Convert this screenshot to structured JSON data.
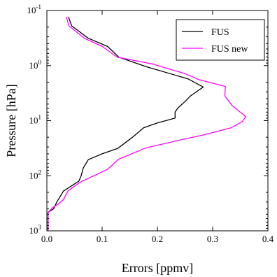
{
  "chart_data": {
    "type": "line",
    "title": "",
    "xlabel": "Errors [ppmv]",
    "ylabel": "Pressure [hPa]",
    "xlim": [
      0.0,
      0.4
    ],
    "ylim": [
      1000,
      0.1
    ],
    "yscale": "log",
    "y_inverted": true,
    "grid": false,
    "legend_position": "top-right",
    "x_ticks": [
      0.0,
      0.1,
      0.2,
      0.3,
      0.4
    ],
    "x_tick_labels": [
      "0.0",
      "0.1",
      "0.2",
      "0.3",
      "0.4"
    ],
    "y_ticks": [
      0.1,
      1,
      10,
      100,
      1000
    ],
    "y_tick_labels": [
      {
        "base": "10",
        "exp": "-1"
      },
      {
        "base": "10",
        "exp": "0"
      },
      {
        "base": "10",
        "exp": "1"
      },
      {
        "base": "10",
        "exp": "2"
      },
      {
        "base": "10",
        "exp": "3"
      }
    ],
    "series": [
      {
        "name": "FUS",
        "color": "#000000",
        "points": [
          {
            "x": 0.039,
            "y": 0.13
          },
          {
            "x": 0.045,
            "y": 0.19
          },
          {
            "x": 0.075,
            "y": 0.32
          },
          {
            "x": 0.11,
            "y": 0.45
          },
          {
            "x": 0.13,
            "y": 0.7
          },
          {
            "x": 0.18,
            "y": 1.05
          },
          {
            "x": 0.256,
            "y": 1.75
          },
          {
            "x": 0.283,
            "y": 2.45
          },
          {
            "x": 0.26,
            "y": 3.55
          },
          {
            "x": 0.25,
            "y": 4.5
          },
          {
            "x": 0.237,
            "y": 5.9
          },
          {
            "x": 0.232,
            "y": 7.0
          },
          {
            "x": 0.232,
            "y": 9.0
          },
          {
            "x": 0.2,
            "y": 11.0
          },
          {
            "x": 0.175,
            "y": 13.5
          },
          {
            "x": 0.155,
            "y": 20.0
          },
          {
            "x": 0.128,
            "y": 32.0
          },
          {
            "x": 0.1,
            "y": 40.0
          },
          {
            "x": 0.075,
            "y": 51.0
          },
          {
            "x": 0.066,
            "y": 72.0
          },
          {
            "x": 0.062,
            "y": 100.0
          },
          {
            "x": 0.058,
            "y": 125.0
          },
          {
            "x": 0.03,
            "y": 190.0
          },
          {
            "x": 0.025,
            "y": 230.0
          },
          {
            "x": 0.018,
            "y": 300.0
          },
          {
            "x": 0.012,
            "y": 400.0
          },
          {
            "x": 0.002,
            "y": 460.0
          },
          {
            "x": 0.002,
            "y": 900.0
          },
          {
            "x": 0.002,
            "y": 1100.0
          }
        ]
      },
      {
        "name": "FUS new",
        "color": "#ff00ff",
        "points": [
          {
            "x": 0.035,
            "y": 0.13
          },
          {
            "x": 0.04,
            "y": 0.19
          },
          {
            "x": 0.068,
            "y": 0.32
          },
          {
            "x": 0.1,
            "y": 0.45
          },
          {
            "x": 0.127,
            "y": 0.7
          },
          {
            "x": 0.19,
            "y": 0.93
          },
          {
            "x": 0.25,
            "y": 1.4
          },
          {
            "x": 0.275,
            "y": 1.8
          },
          {
            "x": 0.32,
            "y": 2.35
          },
          {
            "x": 0.323,
            "y": 2.4
          },
          {
            "x": 0.322,
            "y": 3.55
          },
          {
            "x": 0.335,
            "y": 5.3
          },
          {
            "x": 0.36,
            "y": 8.5
          },
          {
            "x": 0.353,
            "y": 10.5
          },
          {
            "x": 0.333,
            "y": 13.5
          },
          {
            "x": 0.285,
            "y": 18.0
          },
          {
            "x": 0.245,
            "y": 22.0
          },
          {
            "x": 0.18,
            "y": 31.0
          },
          {
            "x": 0.13,
            "y": 50.0
          },
          {
            "x": 0.11,
            "y": 76.0
          },
          {
            "x": 0.09,
            "y": 95.0
          },
          {
            "x": 0.062,
            "y": 128.0
          },
          {
            "x": 0.048,
            "y": 160.0
          },
          {
            "x": 0.038,
            "y": 190.0
          },
          {
            "x": 0.03,
            "y": 270.0
          },
          {
            "x": 0.02,
            "y": 330.0
          },
          {
            "x": 0.01,
            "y": 380.0
          },
          {
            "x": 0.002,
            "y": 470.0
          },
          {
            "x": 0.002,
            "y": 1100.0
          }
        ]
      }
    ]
  }
}
